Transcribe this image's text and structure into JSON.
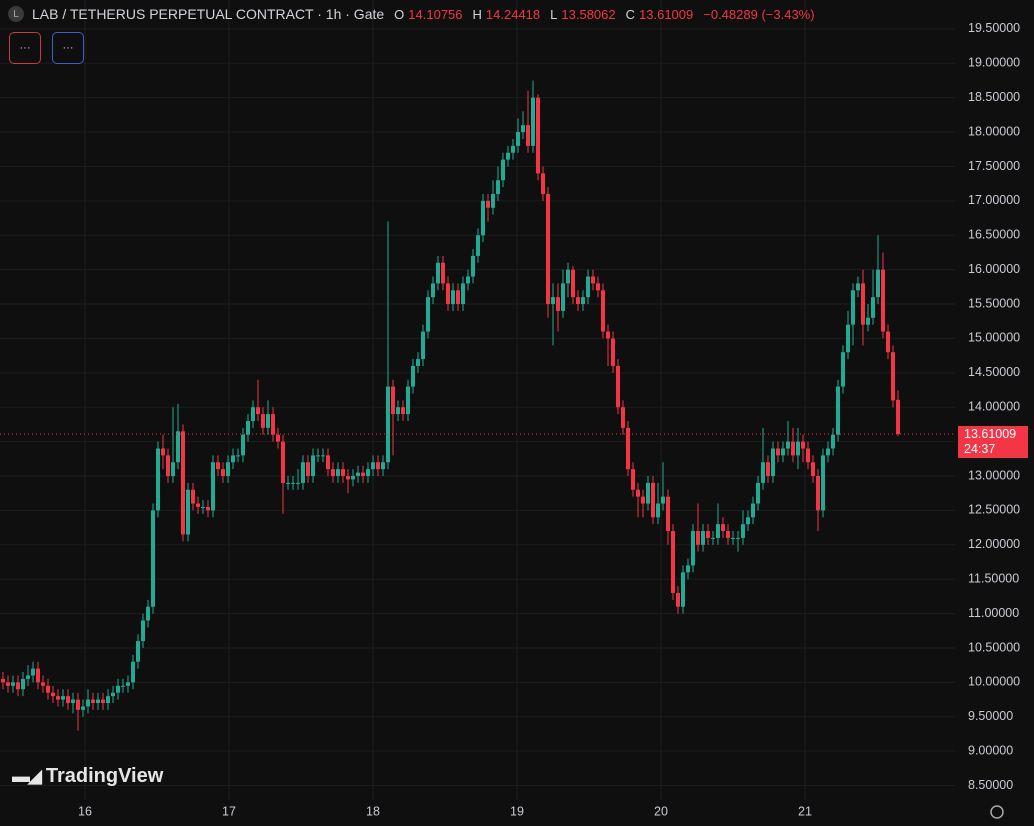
{
  "chart_data": {
    "type": "candlestick",
    "title": "LAB / TETHERUS PERPETUAL CONTRACT · 1h · Gate",
    "icon": "L",
    "ohlc_labels": [
      "O",
      "H",
      "L",
      "C"
    ],
    "change": "−0.48289 (−3.43%)",
    "countdown": "24:37",
    "buttons": [
      "···",
      "···"
    ],
    "logo": "TradingView",
    "up_color": "#22ab94",
    "down_color": "#f23645",
    "xlim": [
      -0.6,
      190.4
    ],
    "xticks": [
      {
        "value": 16.4,
        "label": "16"
      },
      {
        "value": 45.2,
        "label": "17"
      },
      {
        "value": 74,
        "label": "18"
      },
      {
        "value": 102.8,
        "label": "19"
      },
      {
        "value": 131.6,
        "label": "20"
      },
      {
        "value": 160.4,
        "label": "21"
      }
    ],
    "ylim": [
      8.29,
      19.92
    ],
    "yticks": [
      {
        "value": 8.5,
        "label": "8.50000"
      },
      {
        "value": 9,
        "label": "9.00000"
      },
      {
        "value": 9.5,
        "label": "9.50000"
      },
      {
        "value": 10,
        "label": "10.00000"
      },
      {
        "value": 10.5,
        "label": "10.50000"
      },
      {
        "value": 11,
        "label": "11.00000"
      },
      {
        "value": 11.5,
        "label": "11.50000"
      },
      {
        "value": 12,
        "label": "12.00000"
      },
      {
        "value": 12.5,
        "label": "12.50000"
      },
      {
        "value": 13,
        "label": "13.00000"
      },
      {
        "value": 13.5,
        "label": "13.50000"
      },
      {
        "value": 14,
        "label": "14.00000"
      },
      {
        "value": 14.5,
        "label": "14.50000"
      },
      {
        "value": 15,
        "label": "15.00000"
      },
      {
        "value": 15.5,
        "label": "15.50000"
      },
      {
        "value": 16,
        "label": "16.00000"
      },
      {
        "value": 16.5,
        "label": "16.50000"
      },
      {
        "value": 17,
        "label": "17.00000"
      },
      {
        "value": 17.5,
        "label": "17.50000"
      },
      {
        "value": 18,
        "label": "18.00000"
      },
      {
        "value": 18.5,
        "label": "18.50000"
      },
      {
        "value": 19,
        "label": "19.00000"
      },
      {
        "value": 19.5,
        "label": "19.50000"
      }
    ],
    "grid": true,
    "open": [
      10.05,
      10.0,
      9.95,
      10.0,
      9.9,
      10.05,
      10.1,
      10.2,
      10.0,
      9.95,
      9.85,
      9.8,
      9.75,
      9.8,
      9.7,
      9.75,
      9.6,
      9.65,
      9.75,
      9.7,
      9.75,
      9.7,
      9.8,
      9.85,
      9.95,
      9.95,
      10.0,
      10.3,
      10.6,
      10.9,
      11.1,
      12.5,
      13.4,
      13.3,
      13.0,
      13.2,
      13.65,
      12.15,
      12.8,
      12.6,
      12.55,
      12.55,
      12.5,
      13.2,
      13.1,
      13.0,
      13.2,
      13.3,
      13.3,
      13.6,
      13.8,
      14.0,
      13.9,
      13.7,
      13.9,
      13.6,
      13.5,
      12.9,
      12.9,
      12.9,
      12.9,
      13.2,
      13.0,
      13.3,
      13.3,
      13.3,
      13.1,
      13.0,
      13.1,
      13.0,
      12.95,
      13.0,
      13.05,
      13.0,
      13.1,
      13.2,
      13.1,
      13.2,
      14.3,
      13.9,
      14.0,
      13.9,
      14.3,
      14.6,
      14.7,
      15.1,
      15.6,
      15.8,
      16.1,
      15.8,
      15.5,
      15.7,
      15.5,
      15.8,
      15.9,
      16.2,
      16.5,
      17.0,
      16.9,
      17.1,
      17.3,
      17.6,
      17.7,
      17.8,
      18.0,
      18.1,
      17.8,
      18.5,
      17.4,
      17.1,
      15.5,
      15.6,
      15.4,
      15.8,
      16.0,
      15.6,
      15.5,
      15.6,
      15.9,
      15.8,
      15.7,
      15.1,
      15.0,
      14.6,
      14.0,
      13.7,
      13.1,
      12.8,
      12.7,
      12.6,
      12.9,
      12.4,
      12.6,
      12.7,
      12.2,
      11.3,
      11.1,
      11.6,
      11.7,
      12.2,
      12.0,
      12.2,
      12.1,
      12.1,
      12.3,
      12.2,
      12.1,
      12.1,
      12.1,
      12.3,
      12.4,
      12.6,
      12.9,
      13.2,
      13.0,
      13.4,
      13.3,
      13.4,
      13.5,
      13.3,
      13.5,
      13.4,
      13.2,
      13.0,
      12.5,
      13.3,
      13.4,
      13.6,
      14.3,
      14.8,
      15.2,
      15.7,
      15.8,
      15.2,
      15.3,
      15.6,
      16.0,
      15.1,
      14.8,
      14.10756
    ],
    "high": [
      10.15,
      10.1,
      10.1,
      10.1,
      10.15,
      10.25,
      10.3,
      10.3,
      10.1,
      10.05,
      9.95,
      9.9,
      9.9,
      9.9,
      9.85,
      9.85,
      9.75,
      9.9,
      9.85,
      9.85,
      9.85,
      9.9,
      9.95,
      10.05,
      10.05,
      10.1,
      10.4,
      10.7,
      11.0,
      11.2,
      12.6,
      13.5,
      13.6,
      13.4,
      14.0,
      14.05,
      13.75,
      12.9,
      12.9,
      12.7,
      12.65,
      12.65,
      13.3,
      13.3,
      13.2,
      13.3,
      13.4,
      13.4,
      13.7,
      13.9,
      14.1,
      14.4,
      14.0,
      14.1,
      14.0,
      13.7,
      13.6,
      13.0,
      13.0,
      13.1,
      13.3,
      13.3,
      13.4,
      13.4,
      13.4,
      13.4,
      13.2,
      13.2,
      13.2,
      13.1,
      13.1,
      13.15,
      13.15,
      13.2,
      13.3,
      13.3,
      13.3,
      16.7,
      14.4,
      14.1,
      14.1,
      14.4,
      14.7,
      14.8,
      15.2,
      15.7,
      15.9,
      16.2,
      16.2,
      15.9,
      15.8,
      15.8,
      15.9,
      16.0,
      16.3,
      16.6,
      17.1,
      17.1,
      17.3,
      17.5,
      17.7,
      17.8,
      17.9,
      18.2,
      18.3,
      18.6,
      18.75,
      18.55,
      17.5,
      17.2,
      15.8,
      15.8,
      16.0,
      16.1,
      16.05,
      15.7,
      15.7,
      16.0,
      16.0,
      15.9,
      15.8,
      15.2,
      15.1,
      14.7,
      14.1,
      13.8,
      13.2,
      12.9,
      12.8,
      13.0,
      13.0,
      12.9,
      13.2,
      12.8,
      12.3,
      11.4,
      11.7,
      11.8,
      12.3,
      12.6,
      12.3,
      12.3,
      12.2,
      12.6,
      12.4,
      12.3,
      12.2,
      12.2,
      12.5,
      12.5,
      12.7,
      13.0,
      13.7,
      13.3,
      13.5,
      13.5,
      13.5,
      13.8,
      13.7,
      13.7,
      13.6,
      13.5,
      13.3,
      13.1,
      13.4,
      13.5,
      13.7,
      14.4,
      14.9,
      15.4,
      15.8,
      15.9,
      16.0,
      15.5,
      16.0,
      16.5,
      16.25,
      15.2,
      14.9,
      14.24418
    ],
    "low": [
      9.9,
      9.85,
      9.85,
      9.8,
      9.8,
      9.95,
      10.0,
      9.9,
      9.85,
      9.75,
      9.7,
      9.65,
      9.65,
      9.6,
      9.55,
      9.3,
      9.5,
      9.55,
      9.6,
      9.6,
      9.6,
      9.6,
      9.7,
      9.75,
      9.85,
      9.85,
      9.9,
      10.2,
      10.5,
      10.8,
      11.0,
      12.4,
      13.1,
      12.9,
      12.9,
      13.1,
      12.05,
      12.05,
      12.5,
      12.45,
      12.45,
      12.4,
      12.4,
      13.0,
      12.9,
      12.9,
      13.1,
      13.2,
      13.2,
      13.5,
      13.7,
      13.8,
      13.6,
      13.6,
      13.5,
      13.4,
      12.45,
      12.8,
      12.8,
      12.8,
      12.8,
      12.9,
      12.9,
      13.2,
      13.2,
      13.0,
      12.9,
      12.9,
      12.9,
      12.75,
      12.85,
      12.9,
      12.9,
      12.9,
      13.0,
      13.0,
      13.0,
      13.1,
      13.3,
      13.8,
      13.8,
      13.8,
      14.2,
      14.5,
      14.6,
      15.0,
      15.5,
      15.7,
      15.7,
      15.4,
      15.4,
      15.4,
      15.4,
      15.7,
      15.8,
      16.1,
      16.4,
      16.7,
      16.8,
      17.0,
      17.2,
      17.5,
      17.6,
      17.7,
      17.9,
      17.7,
      17.7,
      17.3,
      17.0,
      15.3,
      14.9,
      15.1,
      15.3,
      15.6,
      15.5,
      15.4,
      15.4,
      15.5,
      15.7,
      15.6,
      15.0,
      14.6,
      14.5,
      13.9,
      13.6,
      13.0,
      12.7,
      12.4,
      12.4,
      12.5,
      12.3,
      12.3,
      12.5,
      12.0,
      11.2,
      11.0,
      11.0,
      11.5,
      11.6,
      11.9,
      11.9,
      12.0,
      12.0,
      12.0,
      12.1,
      12.0,
      12.0,
      11.9,
      12.0,
      12.2,
      12.3,
      12.5,
      12.8,
      12.9,
      12.9,
      13.2,
      13.2,
      13.3,
      13.2,
      13.1,
      13.2,
      13.1,
      12.9,
      12.2,
      12.4,
      13.2,
      13.3,
      13.5,
      14.2,
      14.7,
      14.9,
      15.6,
      14.9,
      15.1,
      15.2,
      15.5,
      15.0,
      14.7,
      14.0,
      13.58062
    ],
    "close": [
      10.0,
      9.95,
      10.0,
      9.9,
      10.05,
      10.1,
      10.2,
      10.0,
      9.95,
      9.85,
      9.8,
      9.75,
      9.8,
      9.7,
      9.75,
      9.6,
      9.65,
      9.75,
      9.7,
      9.75,
      9.7,
      9.8,
      9.85,
      9.95,
      9.95,
      10.0,
      10.3,
      10.6,
      10.9,
      11.1,
      12.5,
      13.4,
      13.3,
      13.0,
      13.2,
      13.65,
      12.15,
      12.8,
      12.6,
      12.55,
      12.55,
      12.5,
      13.2,
      13.1,
      13.0,
      13.2,
      13.3,
      13.3,
      13.6,
      13.8,
      14.0,
      13.9,
      13.7,
      13.9,
      13.6,
      13.5,
      12.9,
      12.9,
      12.9,
      12.9,
      13.2,
      13.0,
      13.3,
      13.3,
      13.3,
      13.1,
      13.0,
      13.1,
      13.0,
      12.95,
      13.0,
      13.05,
      13.0,
      13.1,
      13.2,
      13.1,
      13.2,
      14.3,
      13.9,
      14.0,
      13.9,
      14.3,
      14.6,
      14.7,
      15.1,
      15.6,
      15.8,
      16.1,
      15.8,
      15.5,
      15.7,
      15.5,
      15.8,
      15.9,
      16.2,
      16.5,
      17.0,
      16.9,
      17.1,
      17.3,
      17.6,
      17.7,
      17.8,
      18.0,
      18.1,
      17.8,
      18.5,
      17.4,
      17.1,
      15.5,
      15.6,
      15.4,
      15.8,
      16.0,
      15.6,
      15.5,
      15.6,
      15.9,
      15.8,
      15.7,
      15.1,
      15.0,
      14.6,
      14.0,
      13.7,
      13.1,
      12.8,
      12.7,
      12.6,
      12.9,
      12.4,
      12.6,
      12.7,
      12.2,
      11.3,
      11.1,
      11.6,
      11.7,
      12.2,
      12.0,
      12.2,
      12.1,
      12.1,
      12.3,
      12.2,
      12.1,
      12.1,
      12.1,
      12.3,
      12.4,
      12.6,
      12.9,
      13.2,
      13.0,
      13.4,
      13.3,
      13.4,
      13.5,
      13.3,
      13.5,
      13.4,
      13.2,
      13.0,
      12.5,
      13.3,
      13.4,
      13.6,
      14.3,
      14.8,
      15.2,
      15.7,
      15.8,
      15.2,
      15.3,
      15.6,
      16.0,
      15.1,
      14.8,
      14.1,
      13.61009
    ]
  }
}
